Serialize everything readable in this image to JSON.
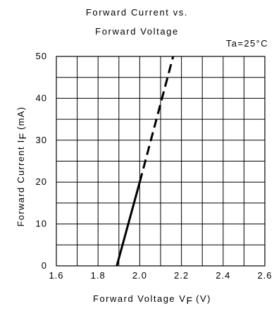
{
  "chart_data": {
    "type": "line",
    "title_line1": "Forward Current vs.",
    "title_line2": "Forward Voltage",
    "condition": "Ta=25°C",
    "xlabel": {
      "text": "Forward Voltage  V",
      "subscript": "F",
      "unit": " (V)"
    },
    "ylabel": {
      "text": "Forward Current I",
      "subscript": "F",
      "unit": " (mA)"
    },
    "xlim": [
      1.6,
      2.6
    ],
    "ylim": [
      0,
      50
    ],
    "x_ticks": [
      "1.6",
      "1.8",
      "2.0",
      "2.2",
      "2.4",
      "2.6"
    ],
    "y_ticks": [
      "0",
      "10",
      "20",
      "30",
      "40",
      "50"
    ],
    "grid": true,
    "series": [
      {
        "style": "solid",
        "color": "#000000",
        "points": [
          [
            1.89,
            0
          ],
          [
            2.0,
            20
          ]
        ]
      },
      {
        "style": "dashed",
        "color": "#000000",
        "points": [
          [
            2.0,
            20
          ],
          [
            2.16,
            50
          ]
        ]
      }
    ]
  }
}
